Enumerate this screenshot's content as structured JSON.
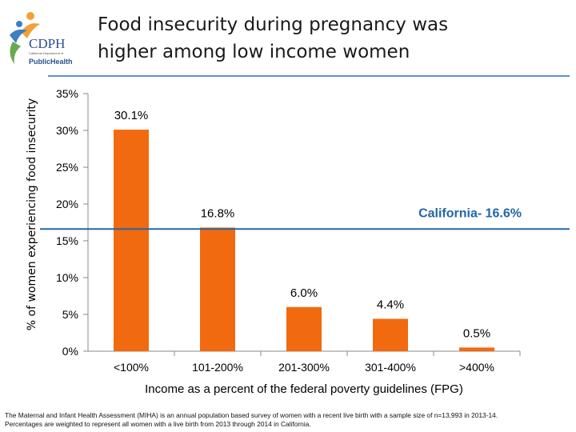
{
  "logo": {
    "text_main": "CDPH",
    "text_small": "California Department of",
    "text_ph": "PublicHealth"
  },
  "title": {
    "line1": "Food insecurity during pregnancy was",
    "line2": "higher among low income women"
  },
  "footnote": {
    "line1": "The Maternal and Infant Health Assessment (MIHA) is an annual population based survey of women with a recent live birth with a sample size of n=13,993 in 2013-14.",
    "line2": "Percentages are weighted to represent all women with a live birth from 2013 through 2014 in California."
  },
  "colors": {
    "bar": "#f26a10",
    "reference": "#2166a8",
    "axis": "#888888"
  },
  "chart_data": {
    "type": "bar",
    "categories": [
      "<100%",
      "101-200%",
      "201-300%",
      "301-400%",
      ">400%"
    ],
    "values": [
      30.1,
      16.8,
      6.0,
      4.4,
      0.5
    ],
    "data_labels": [
      "30.1%",
      "16.8%",
      "6.0%",
      "4.4%",
      "0.5%"
    ],
    "xlabel": "Income as a percent of the federal poverty guidelines (FPG)",
    "ylabel": "% of women experiencing food insecurity",
    "ylim": [
      0,
      35
    ],
    "yticks": [
      0,
      5,
      10,
      15,
      20,
      25,
      30,
      35
    ],
    "ytick_labels": [
      "0%",
      "5%",
      "10%",
      "15%",
      "20%",
      "25%",
      "30%",
      "35%"
    ],
    "reference_line": {
      "value": 16.6,
      "label": "California- 16.6%"
    },
    "grid": false,
    "legend": false
  }
}
